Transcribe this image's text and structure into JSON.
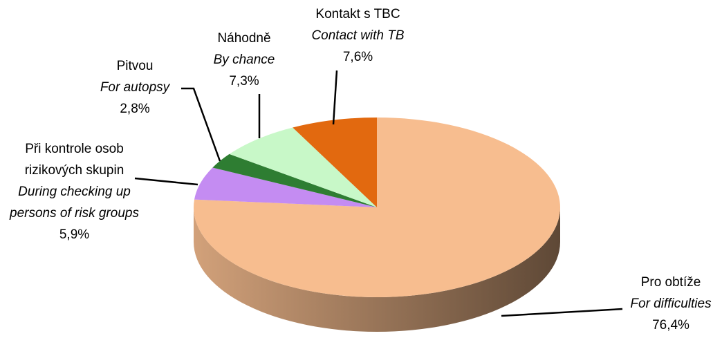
{
  "chart_data": {
    "type": "pie",
    "categories": [
      "Pro obtíže",
      "Při kontrole osob rizikových skupin",
      "Pitvou",
      "Náhodně",
      "Kontakt s TBC"
    ],
    "categories_en": [
      "For difficulties",
      "During checking up persons of risk groups",
      "For autopsy",
      "By chance",
      "Contact with TB"
    ],
    "values": [
      76.4,
      5.9,
      2.8,
      7.3,
      7.6
    ],
    "value_labels": [
      "76,4%",
      "5,9%",
      "2,8%",
      "7,3%",
      "7,6%"
    ],
    "colors": [
      "#f7bd8f",
      "#c48cf2",
      "#2e7d32",
      "#c8f8c8",
      "#e2690f"
    ]
  }
}
